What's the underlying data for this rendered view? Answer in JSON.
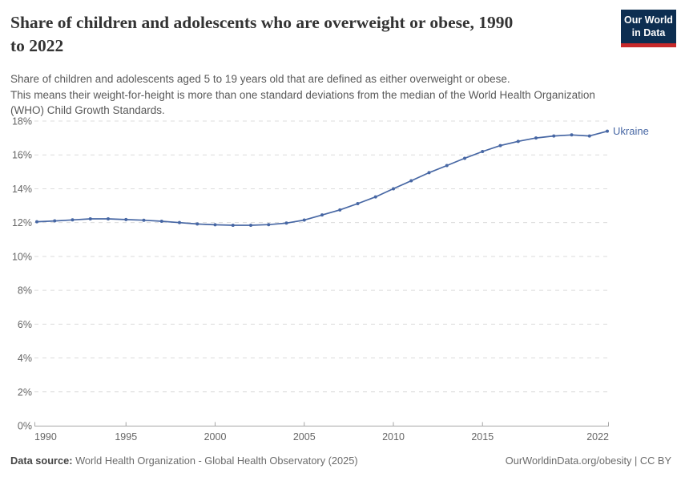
{
  "header": {
    "title_lines": [
      "Share of children and adolescents who are overweight or obese, 1990",
      "to 2022"
    ],
    "subtitle_lines": [
      "Share of children and adolescents aged 5 to 19 years old that are defined as either overweight or obese.",
      "This means their weight-for-height is more than one standard deviations from the median of the World Health Organization",
      "(WHO) Child Growth Standards."
    ],
    "logo": {
      "line1": "Our World",
      "line2": "in Data"
    }
  },
  "footer": {
    "datasource_label": "Data source:",
    "datasource_text": " World Health Organization - Global Health Observatory (2025)",
    "link_text": "OurWorldinData.org/obesity | CC BY"
  },
  "colors": {
    "line": "#4767a4",
    "entity_label": "#4767a4",
    "grid": "#dcdcdc",
    "axis": "#a6a6a6",
    "tick_label": "#666666",
    "logo_navy": "#0d2e51",
    "logo_red": "#c7292a"
  },
  "chart_data": {
    "type": "line",
    "title": "Share of children and adolescents who are overweight or obese, 1990 to 2022",
    "x": [
      1990,
      1991,
      1992,
      1993,
      1994,
      1995,
      1996,
      1997,
      1998,
      1999,
      2000,
      2001,
      2002,
      2003,
      2004,
      2005,
      2006,
      2007,
      2008,
      2009,
      2010,
      2011,
      2012,
      2013,
      2014,
      2015,
      2016,
      2017,
      2018,
      2019,
      2020,
      2021,
      2022
    ],
    "series": [
      {
        "name": "Ukraine",
        "values": [
          12.05,
          12.1,
          12.16,
          12.22,
          12.22,
          12.18,
          12.14,
          12.08,
          12.0,
          11.92,
          11.87,
          11.84,
          11.84,
          11.88,
          11.97,
          12.15,
          12.45,
          12.75,
          13.12,
          13.52,
          14.0,
          14.47,
          14.95,
          15.37,
          15.8,
          16.2,
          16.55,
          16.8,
          17.0,
          17.12,
          17.18,
          17.12,
          17.4
        ]
      }
    ],
    "x_ticks": [
      1990,
      1995,
      2000,
      2005,
      2010,
      2015,
      2022
    ],
    "ylim": [
      0,
      18
    ],
    "y_tick_step": 2,
    "y_tick_suffix": "%",
    "grid": "dashed-horizontal",
    "legend": "entity-label-at-line-end",
    "markers": "points"
  }
}
